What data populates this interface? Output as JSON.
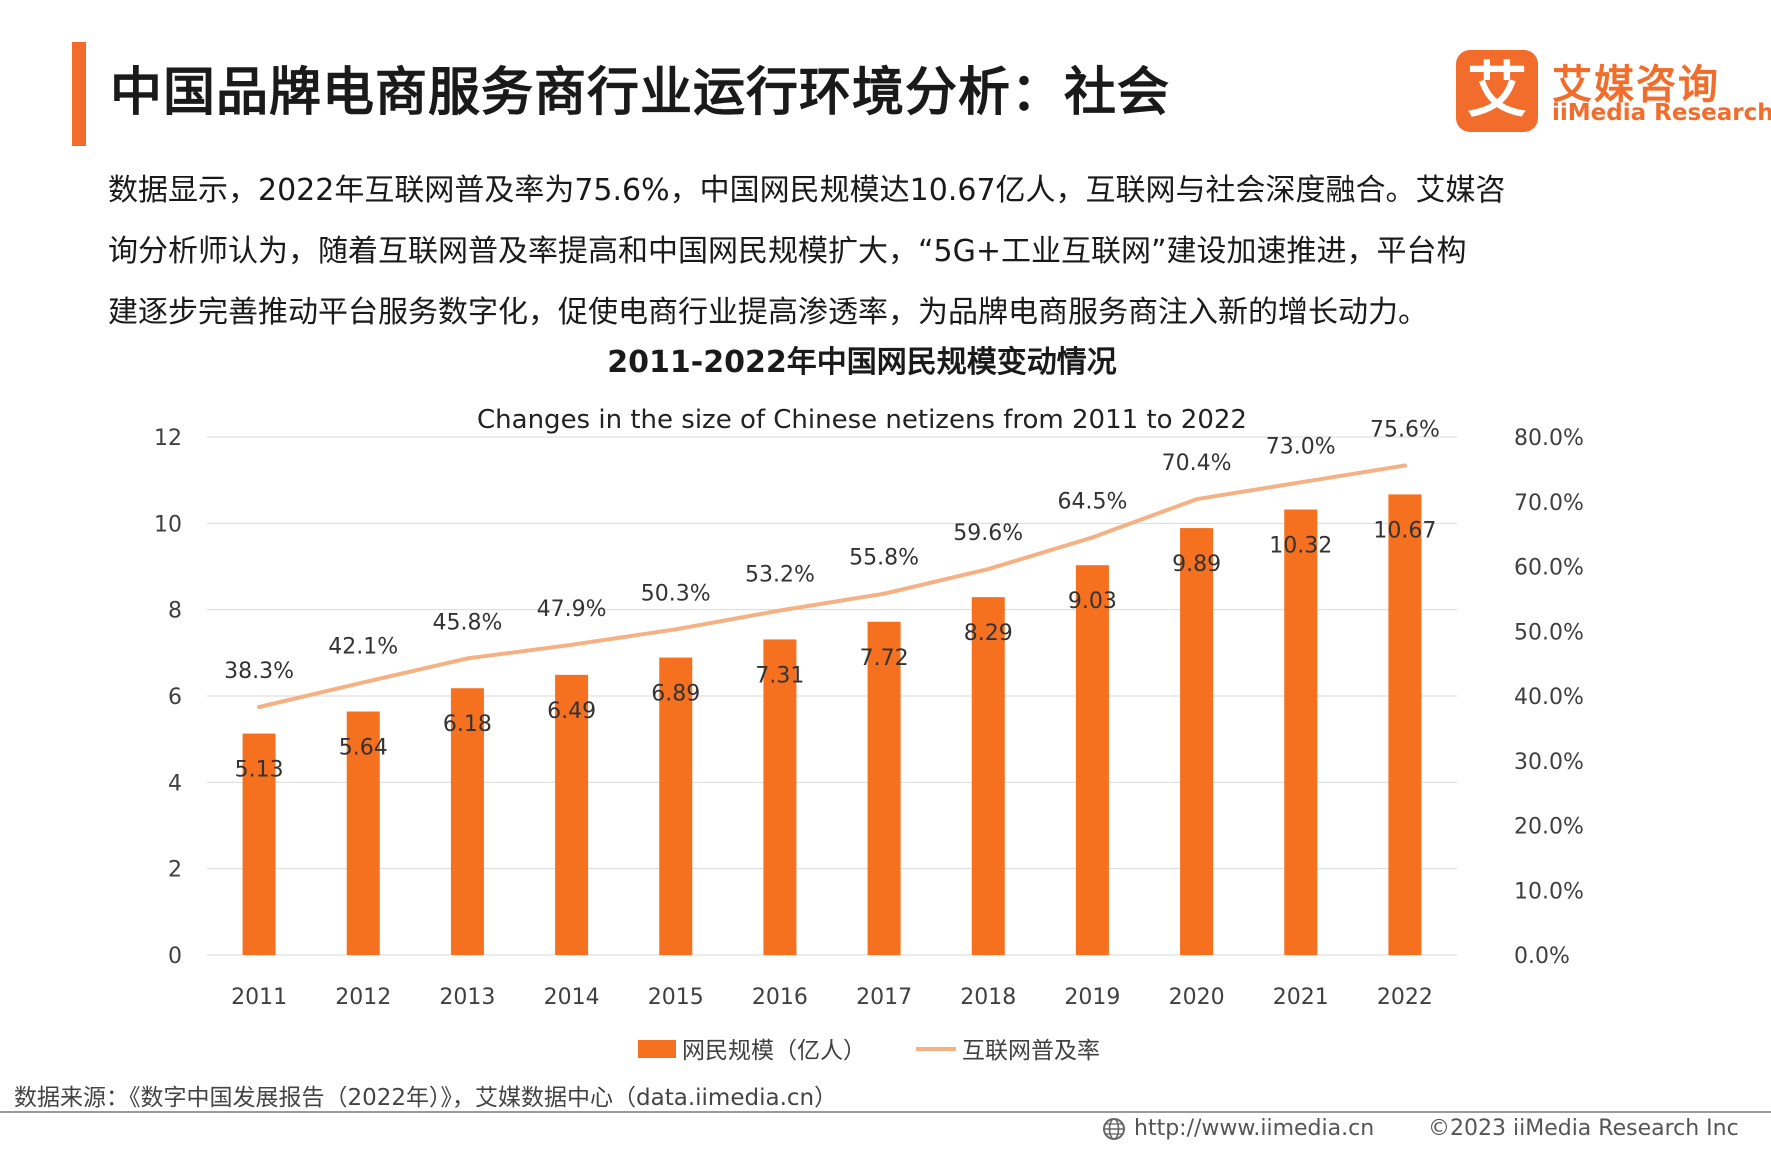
{
  "header": {
    "title": "中国品牌电商服务商行业运行环境分析：社会",
    "logo_cn": "艾媒咨询",
    "logo_en": "iiMedia Research",
    "logo_mark": "艾"
  },
  "description": [
    "数据显示，2022年互联网普及率为75.6%，中国网民规模达10.67亿人，互联网与社会深度融合。艾媒咨",
    "询分析师认为，随着互联网普及率提高和中国网民规模扩大，“5G+工业互联网”建设加速推进，平台构",
    "建逐步完善推动平台服务数字化，促使电商行业提高渗透率，为品牌电商服务商注入新的增长动力。"
  ],
  "chart_data": {
    "type": "bar",
    "title": "2011-2022年中国网民规模变动情况",
    "subtitle": "Changes in the size of Chinese netizens from 2011 to 2022",
    "categories": [
      "2011",
      "2012",
      "2013",
      "2014",
      "2015",
      "2016",
      "2017",
      "2018",
      "2019",
      "2020",
      "2021",
      "2022"
    ],
    "series": [
      {
        "name": "网民规模（亿人）",
        "type": "bar",
        "axis": "left",
        "values": [
          5.13,
          5.64,
          6.18,
          6.49,
          6.89,
          7.31,
          7.72,
          8.29,
          9.03,
          9.89,
          10.32,
          10.67
        ],
        "labels": [
          "5.13",
          "5.64",
          "6.18",
          "6.49",
          "6.89",
          "7.31",
          "7.72",
          "8.29",
          "9.03",
          "9.89",
          "10.32",
          "10.67"
        ]
      },
      {
        "name": "互联网普及率",
        "type": "line",
        "axis": "right",
        "values": [
          38.3,
          42.1,
          45.8,
          47.9,
          50.3,
          53.2,
          55.8,
          59.6,
          64.5,
          70.4,
          73.0,
          75.6
        ],
        "labels": [
          "38.3%",
          "42.1%",
          "45.8%",
          "47.9%",
          "50.3%",
          "53.2%",
          "55.8%",
          "59.6%",
          "64.5%",
          "70.4%",
          "73.0%",
          "75.6%"
        ]
      }
    ],
    "ylim": [
      0,
      12
    ],
    "yticks": [
      "0",
      "2",
      "4",
      "6",
      "8",
      "10",
      "12"
    ],
    "y2lim": [
      0,
      80
    ],
    "y2ticks": [
      "0.0%",
      "10.0%",
      "20.0%",
      "30.0%",
      "40.0%",
      "50.0%",
      "60.0%",
      "70.0%",
      "80.0%"
    ],
    "grid": true,
    "legend_position": "bottom",
    "colors": {
      "bar": "#f5701f",
      "line": "#f5b183",
      "grid": "#d9d9d9",
      "text": "#404040"
    }
  },
  "footer": {
    "source": "数据来源：《数字中国发展报告（2022年）》，艾媒数据中心（data.iimedia.cn）",
    "url": "http://www.iimedia.cn",
    "copyright": "©2023  iiMedia Research  Inc",
    "url_icon": "globe-icon"
  },
  "theme": {
    "accent": "#f26c2b"
  }
}
